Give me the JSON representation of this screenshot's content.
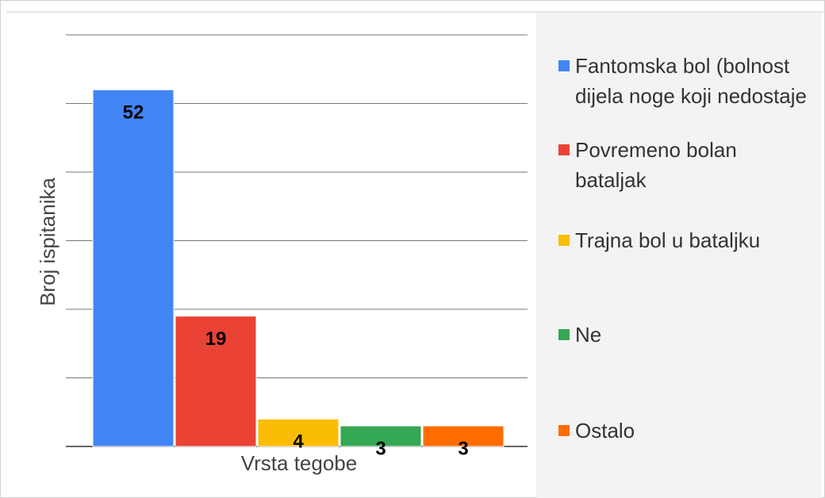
{
  "chart_data": {
    "type": "bar",
    "y_label": "Broj ispitanika",
    "x_label": "Vrsta tegobe",
    "series": [
      {
        "name": "Fantomska bol (bolnost dijela noge koji nedostaje",
        "color": "#4285f4",
        "values": [
          52
        ]
      },
      {
        "name": "Povremeno bolan bataljak",
        "color": "#ea4335",
        "values": [
          19
        ]
      },
      {
        "name": "Trajna bol u bataljku",
        "color": "#fbbc04",
        "values": [
          4
        ]
      },
      {
        "name": "Ne",
        "color": "#34a853",
        "values": [
          3
        ]
      },
      {
        "name": "Ostalo",
        "color": "#ff6d01",
        "values": [
          3
        ]
      }
    ],
    "ylim": [
      0,
      60
    ],
    "yticks": [
      0,
      10,
      20,
      30,
      40,
      50,
      60
    ],
    "grid": true,
    "legend": "right"
  }
}
